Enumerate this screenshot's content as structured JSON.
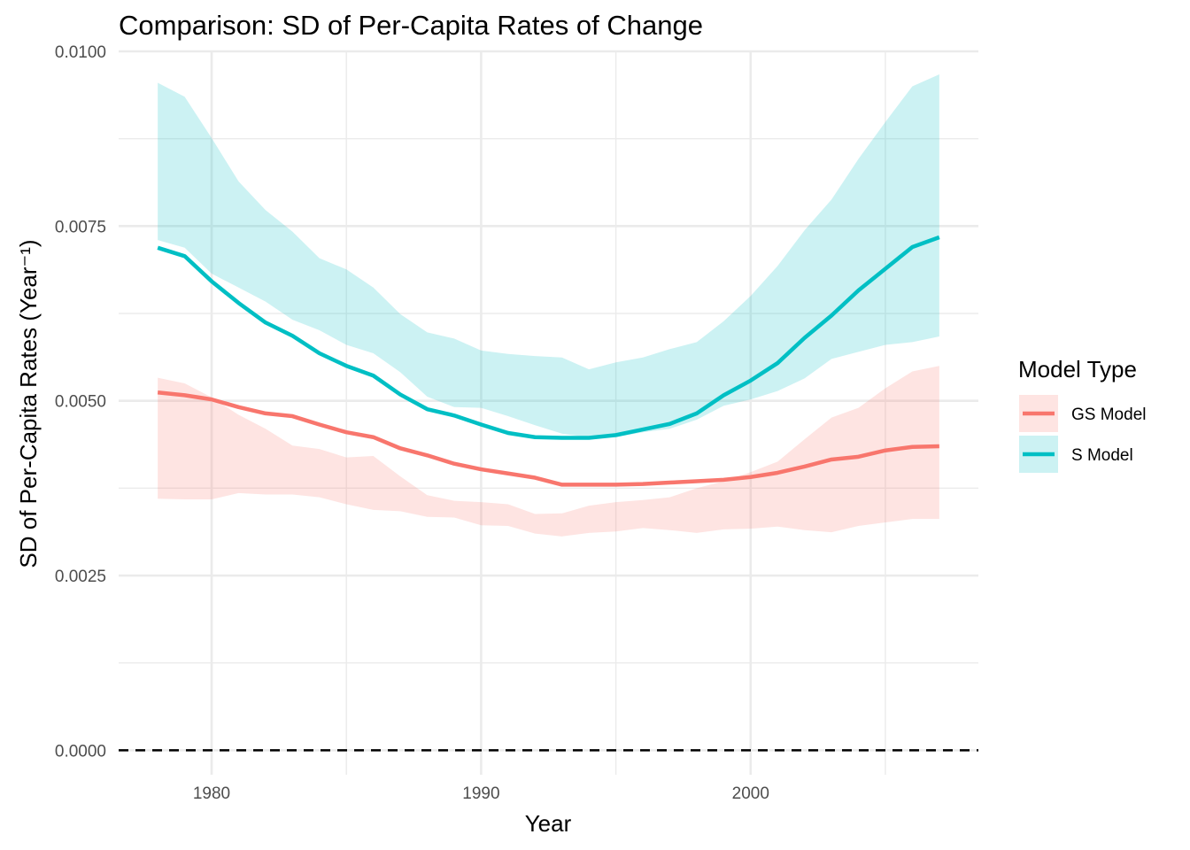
{
  "chart_data": {
    "type": "line",
    "title": "Comparison: SD of Per-Capita Rates of Change",
    "xlabel": "Year",
    "ylabel": "SD of Per-Capita Rates (Year⁻¹)",
    "xlim": [
      1976.55,
      2008.45
    ],
    "ylim": [
      -0.00035,
      0.01
    ],
    "x_ticks": [
      1980,
      1990,
      2000
    ],
    "x_tick_labels": [
      "1980",
      "1990",
      "2000"
    ],
    "y_ticks": [
      0.0,
      0.0025,
      0.005,
      0.0075,
      0.01
    ],
    "y_tick_labels": [
      "0.0000",
      "0.0025",
      "0.0050",
      "0.0075",
      "0.0100"
    ],
    "grid": true,
    "reference_line": {
      "y": 0.0,
      "style": "dashed",
      "color": "#000000"
    },
    "legend": {
      "title": "Model Type",
      "position": "right"
    },
    "x": [
      1978,
      1979,
      1980,
      1981,
      1982,
      1983,
      1984,
      1985,
      1986,
      1987,
      1988,
      1989,
      1990,
      1991,
      1992,
      1993,
      1994,
      1995,
      1996,
      1997,
      1998,
      1999,
      2000,
      2001,
      2002,
      2003,
      2004,
      2005,
      2006,
      2007
    ],
    "series": [
      {
        "name": "GS Model",
        "color": "#f8766d",
        "values": [
          0.00512,
          0.00508,
          0.00502,
          0.00491,
          0.00482,
          0.00478,
          0.00466,
          0.00455,
          0.00448,
          0.00432,
          0.00422,
          0.0041,
          0.00402,
          0.00396,
          0.0039,
          0.0038,
          0.0038,
          0.0038,
          0.00381,
          0.00383,
          0.00385,
          0.00387,
          0.00391,
          0.00397,
          0.00406,
          0.00416,
          0.0042,
          0.00429,
          0.00434,
          0.00435
        ],
        "lower": [
          0.0036,
          0.00359,
          0.00359,
          0.00368,
          0.00366,
          0.00366,
          0.00362,
          0.00352,
          0.00344,
          0.00342,
          0.00334,
          0.00333,
          0.00322,
          0.00321,
          0.0031,
          0.00306,
          0.00311,
          0.00313,
          0.00318,
          0.00315,
          0.00311,
          0.00316,
          0.00317,
          0.0032,
          0.00315,
          0.00312,
          0.00321,
          0.00326,
          0.00331,
          0.00331
        ],
        "upper": [
          0.00533,
          0.00525,
          0.00505,
          0.0048,
          0.0046,
          0.00436,
          0.00431,
          0.00419,
          0.00421,
          0.00392,
          0.00365,
          0.00357,
          0.00355,
          0.00352,
          0.00338,
          0.00339,
          0.0035,
          0.00355,
          0.00358,
          0.00362,
          0.00375,
          0.00385,
          0.00398,
          0.00413,
          0.00445,
          0.00476,
          0.0049,
          0.00518,
          0.00542,
          0.0055
        ]
      },
      {
        "name": "S Model",
        "color": "#00bfc4",
        "values": [
          0.00719,
          0.00707,
          0.00671,
          0.0064,
          0.00612,
          0.00593,
          0.00568,
          0.0055,
          0.00536,
          0.00509,
          0.00488,
          0.00479,
          0.00466,
          0.00454,
          0.00448,
          0.00447,
          0.00447,
          0.00451,
          0.00459,
          0.00467,
          0.00482,
          0.00508,
          0.00529,
          0.00554,
          0.0059,
          0.00622,
          0.00658,
          0.00689,
          0.0072,
          0.00734
        ],
        "lower": [
          0.0073,
          0.00719,
          0.00682,
          0.00662,
          0.00642,
          0.00616,
          0.00601,
          0.0058,
          0.00568,
          0.00541,
          0.00506,
          0.00491,
          0.0049,
          0.00478,
          0.00465,
          0.00453,
          0.00448,
          0.00448,
          0.00455,
          0.0046,
          0.00473,
          0.00493,
          0.00502,
          0.00514,
          0.00532,
          0.0056,
          0.0057,
          0.0058,
          0.00584,
          0.00592
        ],
        "upper": [
          0.00955,
          0.00935,
          0.00876,
          0.00814,
          0.00773,
          0.00742,
          0.00704,
          0.00688,
          0.00662,
          0.00624,
          0.00598,
          0.00589,
          0.00572,
          0.00567,
          0.00564,
          0.00562,
          0.00545,
          0.00555,
          0.00562,
          0.00574,
          0.00584,
          0.00614,
          0.0065,
          0.00693,
          0.00744,
          0.00788,
          0.00846,
          0.00899,
          0.0095,
          0.00967
        ]
      }
    ]
  }
}
